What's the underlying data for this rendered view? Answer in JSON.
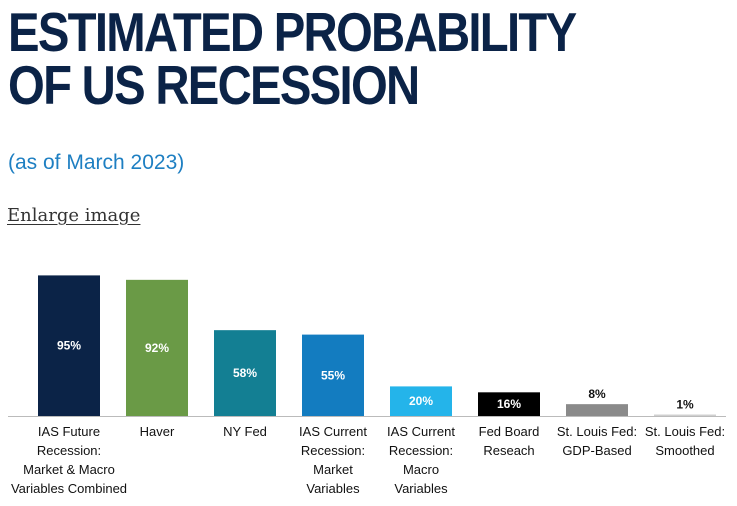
{
  "header": {
    "title": "ESTIMATED PROBABILITY OF US RECESSION",
    "subtitle": "(as of March 2023)",
    "enlarge_link": "Enlarge image"
  },
  "chart_data": {
    "type": "bar",
    "title": "ESTIMATED PROBABILITY OF US RECESSION",
    "subtitle": "(as of March 2023)",
    "xlabel": "",
    "ylabel": "",
    "ylim": [
      0,
      100
    ],
    "grid": false,
    "categories": [
      [
        "IAS Future",
        "Recession:",
        "Market & Macro",
        "Variables Combined"
      ],
      [
        "Haver"
      ],
      [
        "NY Fed"
      ],
      [
        "IAS Current",
        "Recession:",
        "Market",
        "Variables"
      ],
      [
        "IAS Current",
        "Recession:",
        "Macro",
        "Variables"
      ],
      [
        "Fed Board",
        "Reseach"
      ],
      [
        "St. Louis Fed:",
        "GDP-Based"
      ],
      [
        "St. Louis Fed:",
        "Smoothed"
      ]
    ],
    "values": [
      95,
      92,
      58,
      55,
      20,
      16,
      8,
      1
    ],
    "value_labels": [
      "95%",
      "92%",
      "58%",
      "55%",
      "20%",
      "16%",
      "8%",
      "1%"
    ],
    "colors": [
      "#0b2347",
      "#6a9a46",
      "#137f93",
      "#137cc0",
      "#24b4ea",
      "#000000",
      "#8a8a8a",
      "#cfcfcf"
    ],
    "label_colors": [
      "#ffffff",
      "#ffffff",
      "#ffffff",
      "#ffffff",
      "#ffffff",
      "#ffffff",
      "#111111",
      "#111111"
    ]
  }
}
